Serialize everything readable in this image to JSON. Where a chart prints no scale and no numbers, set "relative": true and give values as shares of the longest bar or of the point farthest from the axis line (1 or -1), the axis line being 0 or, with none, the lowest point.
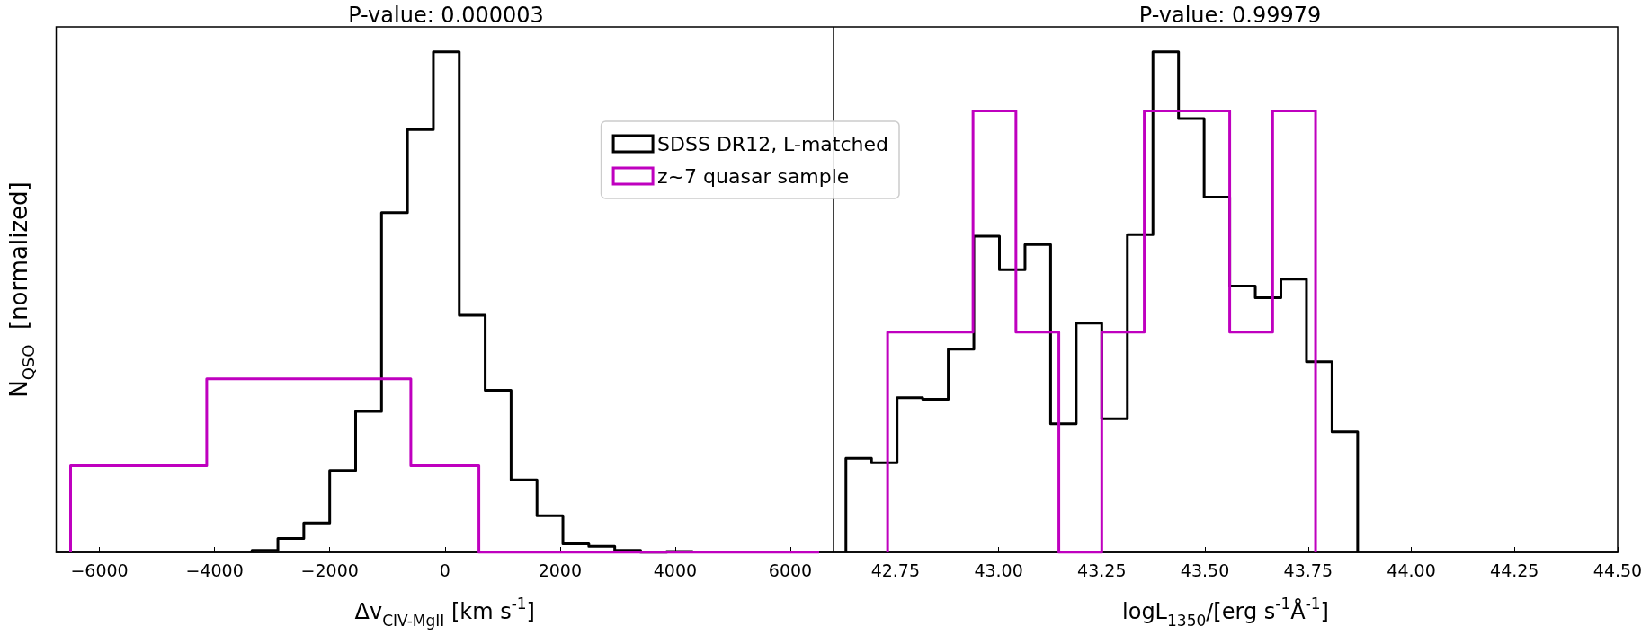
{
  "chart_data": [
    {
      "type": "step",
      "title": "P-value: 0.000003",
      "xlabel": "Δv$_{CIV-MgII}$ [km s$^{-1}$]",
      "ylabel": "N$_{QSO}$  [normalized]",
      "relative": true,
      "xlim": [
        -6750,
        6750
      ],
      "xticks": [
        {
          "value": -6000,
          "label": "−6000"
        },
        {
          "value": -4000,
          "label": "−4000"
        },
        {
          "value": -2000,
          "label": "−2000"
        },
        0,
        2000,
        4000,
        6000
      ],
      "tick_labels": "x",
      "grid": false,
      "legend": "top right",
      "line_style": "solid",
      "marker": "none",
      "series": [
        {
          "name": "SDSS DR12, L-matched",
          "color": "#000000",
          "x": [
            -3350,
            -3350,
            -2900,
            -2450,
            -2000,
            -1550,
            -1100,
            -650,
            -200,
            250,
            700,
            1150,
            1600,
            2050,
            2500,
            2950,
            3400,
            3850,
            4300
          ],
          "values": [
            0,
            0.004,
            0.028,
            0.059,
            0.164,
            0.282,
            0.679,
            0.845,
            1,
            0.474,
            0.324,
            0.145,
            0.073,
            0.017,
            0.012,
            0.004,
            0,
            0.002,
            0
          ]
        },
        {
          "name": "z~7 quasar sample",
          "color": "#bf00bf",
          "x": [
            -6500,
            -6500,
            -5318,
            -4136,
            -2955,
            -1773,
            -591,
            591,
            1773,
            2955,
            4136,
            5318,
            6500
          ],
          "values": [
            0,
            0.173,
            0.173,
            0.347,
            0.347,
            0.347,
            0.173,
            0,
            0,
            0,
            0,
            0,
            0
          ]
        }
      ]
    },
    {
      "type": "step",
      "title": "P-value: 0.99979",
      "xlabel": "logL$_{1350}$/[erg s$^{-1}$Å$^{-1}$]",
      "relative": true,
      "xlim": [
        42.6,
        44.5
      ],
      "xticks": [
        42.75,
        {
          "value": 43,
          "label": "43.00"
        },
        43.25,
        {
          "value": 43.5,
          "label": "43.50"
        },
        43.75,
        {
          "value": 44,
          "label": "44.00"
        },
        44.25,
        {
          "value": 44.5,
          "label": "44.50"
        }
      ],
      "tick_labels": "x",
      "grid": false,
      "line_style": "solid",
      "marker": "none",
      "series": [
        {
          "color": "#000000",
          "x": [
            42.63,
            42.63,
            42.692,
            42.754,
            42.816,
            42.878,
            42.94,
            43.002,
            43.064,
            43.126,
            43.188,
            43.25,
            43.312,
            43.374,
            43.436,
            43.498,
            43.56,
            43.622,
            43.684,
            43.746,
            43.808,
            43.87
          ],
          "values": [
            0,
            0.188,
            0.179,
            0.309,
            0.306,
            0.406,
            0.632,
            0.565,
            0.615,
            0.257,
            0.458,
            0.267,
            0.635,
            1,
            0.867,
            0.71,
            0.532,
            0.509,
            0.546,
            0.381,
            0.241,
            0
          ]
        },
        {
          "color": "#bf00bf",
          "x": [
            42.731,
            42.731,
            42.835,
            42.938,
            43.042,
            43.146,
            43.25,
            43.353,
            43.457,
            43.56,
            43.664,
            43.768
          ],
          "values": [
            0,
            0.44,
            0.44,
            0.882,
            0.44,
            0,
            0.44,
            0.882,
            0.882,
            0.44,
            0.882,
            0
          ]
        }
      ]
    }
  ]
}
